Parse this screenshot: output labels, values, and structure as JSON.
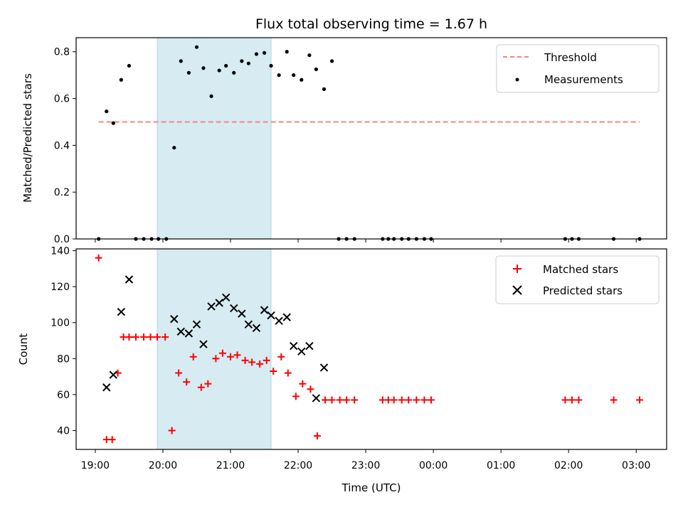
{
  "colors": {
    "threshold": "#ff7f7f",
    "measurement": "#000000",
    "matched": "#ff0000",
    "predicted": "#000000",
    "span": "#add8e6"
  },
  "chart_data": [
    {
      "type": "scatter",
      "title": "Flux total observing time = 1.67 h",
      "xlabel": "",
      "ylabel": "Matched/Predicted stars",
      "xlim": [
        "18:43",
        "03:27"
      ],
      "ylim": [
        0,
        0.86
      ],
      "yticks": [
        "0.0",
        "0.2",
        "0.4",
        "0.6",
        "0.8"
      ],
      "shaded_span": {
        "start": "19:55",
        "end": "21:36"
      },
      "legend": {
        "position": "upper right",
        "entries": [
          "Threshold",
          "Measurements"
        ]
      },
      "threshold": {
        "name": "Threshold",
        "value": 0.5,
        "x_start": "19:03",
        "x_end": "03:03",
        "style": "dashed"
      },
      "series": [
        {
          "name": "Measurements",
          "points": [
            [
              "19:03",
              0.0
            ],
            [
              "19:10",
              0.545
            ],
            [
              "19:16",
              0.495
            ],
            [
              "19:23",
              0.68
            ],
            [
              "19:30",
              0.74
            ],
            [
              "19:36",
              0.0
            ],
            [
              "19:43",
              0.0
            ],
            [
              "19:50",
              0.0
            ],
            [
              "19:56",
              0.0
            ],
            [
              "20:03",
              0.0
            ],
            [
              "20:10",
              0.39
            ],
            [
              "20:16",
              0.76
            ],
            [
              "20:23",
              0.71
            ],
            [
              "20:30",
              0.82
            ],
            [
              "20:36",
              0.73
            ],
            [
              "20:43",
              0.61
            ],
            [
              "20:50",
              0.72
            ],
            [
              "20:56",
              0.74
            ],
            [
              "21:03",
              0.71
            ],
            [
              "21:10",
              0.76
            ],
            [
              "21:16",
              0.75
            ],
            [
              "21:23",
              0.79
            ],
            [
              "21:30",
              0.795
            ],
            [
              "21:36",
              0.74
            ],
            [
              "21:43",
              0.7
            ],
            [
              "21:50",
              0.8
            ],
            [
              "21:56",
              0.7
            ],
            [
              "22:03",
              0.68
            ],
            [
              "22:10",
              0.785
            ],
            [
              "22:16",
              0.725
            ],
            [
              "22:23",
              0.64
            ],
            [
              "22:30",
              0.76
            ],
            [
              "22:36",
              0.0
            ],
            [
              "22:43",
              0.0
            ],
            [
              "22:50",
              0.0
            ],
            [
              "23:15",
              0.0
            ],
            [
              "23:20",
              0.0
            ],
            [
              "23:25",
              0.0
            ],
            [
              "23:32",
              0.0
            ],
            [
              "23:38",
              0.0
            ],
            [
              "23:45",
              0.0
            ],
            [
              "23:52",
              0.0
            ],
            [
              "23:58",
              0.0
            ],
            [
              "01:57",
              0.0
            ],
            [
              "02:03",
              0.0
            ],
            [
              "02:09",
              0.0
            ],
            [
              "02:40",
              0.0
            ],
            [
              "03:03",
              0.0
            ]
          ]
        }
      ]
    },
    {
      "type": "scatter",
      "title": "",
      "xlabel": "Time (UTC)",
      "ylabel": "Count",
      "xlim": [
        "18:43",
        "03:27"
      ],
      "ylim": [
        29.5,
        141
      ],
      "yticks": [
        "40",
        "60",
        "80",
        "100",
        "120",
        "140"
      ],
      "xticks": [
        "19:00",
        "20:00",
        "21:00",
        "22:00",
        "23:00",
        "00:00",
        "01:00",
        "02:00",
        "03:00"
      ],
      "shaded_span": {
        "start": "19:55",
        "end": "21:36"
      },
      "legend": {
        "position": "upper right",
        "entries": [
          "Matched stars",
          "Predicted stars"
        ]
      },
      "series": [
        {
          "name": "Matched stars",
          "marker": "+",
          "points": [
            [
              "19:03",
              136
            ],
            [
              "19:10",
              35
            ],
            [
              "19:15",
              35
            ],
            [
              "19:20",
              72
            ],
            [
              "19:25",
              92
            ],
            [
              "19:30",
              92
            ],
            [
              "19:36",
              92
            ],
            [
              "19:43",
              92
            ],
            [
              "19:49",
              92
            ],
            [
              "19:55",
              92
            ],
            [
              "20:02",
              92
            ],
            [
              "20:08",
              40
            ],
            [
              "20:14",
              72
            ],
            [
              "20:21",
              67
            ],
            [
              "20:27",
              81
            ],
            [
              "20:34",
              64
            ],
            [
              "20:40",
              66
            ],
            [
              "20:47",
              80
            ],
            [
              "20:53",
              83
            ],
            [
              "21:00",
              81
            ],
            [
              "21:06",
              82
            ],
            [
              "21:13",
              79
            ],
            [
              "21:19",
              78
            ],
            [
              "21:26",
              77
            ],
            [
              "21:32",
              79
            ],
            [
              "21:38",
              73
            ],
            [
              "21:45",
              81
            ],
            [
              "21:51",
              72
            ],
            [
              "21:58",
              59
            ],
            [
              "22:04",
              66
            ],
            [
              "22:11",
              63
            ],
            [
              "22:17",
              37
            ],
            [
              "22:24",
              57
            ],
            [
              "22:30",
              57
            ],
            [
              "22:37",
              57
            ],
            [
              "22:43",
              57
            ],
            [
              "22:50",
              57
            ],
            [
              "23:15",
              57
            ],
            [
              "23:20",
              57
            ],
            [
              "23:25",
              57
            ],
            [
              "23:32",
              57
            ],
            [
              "23:38",
              57
            ],
            [
              "23:45",
              57
            ],
            [
              "23:52",
              57
            ],
            [
              "23:58",
              57
            ],
            [
              "01:57",
              57
            ],
            [
              "02:03",
              57
            ],
            [
              "02:09",
              57
            ],
            [
              "02:40",
              57
            ],
            [
              "03:03",
              57
            ]
          ]
        },
        {
          "name": "Predicted stars",
          "marker": "x",
          "points": [
            [
              "19:10",
              64
            ],
            [
              "19:16",
              71
            ],
            [
              "19:23",
              106
            ],
            [
              "19:30",
              124
            ],
            [
              "20:10",
              102
            ],
            [
              "20:16",
              95
            ],
            [
              "20:23",
              94
            ],
            [
              "20:30",
              99
            ],
            [
              "20:36",
              88
            ],
            [
              "20:43",
              109
            ],
            [
              "20:50",
              111
            ],
            [
              "20:56",
              114
            ],
            [
              "21:03",
              108
            ],
            [
              "21:10",
              105
            ],
            [
              "21:16",
              99
            ],
            [
              "21:23",
              97
            ],
            [
              "21:30",
              107
            ],
            [
              "21:36",
              104
            ],
            [
              "21:43",
              101
            ],
            [
              "21:50",
              103
            ],
            [
              "21:56",
              87
            ],
            [
              "22:03",
              84
            ],
            [
              "22:10",
              87
            ],
            [
              "22:16",
              58
            ],
            [
              "22:23",
              75
            ]
          ]
        }
      ]
    }
  ]
}
